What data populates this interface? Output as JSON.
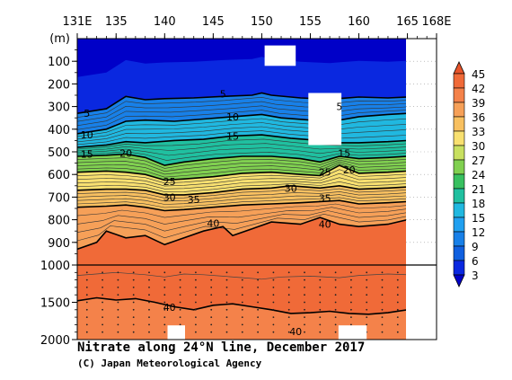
{
  "chart_data": {
    "type": "heatmap",
    "title": "Nitrate along 24°N line, December 2017",
    "credit": "(C) Japan Meteorological Agency",
    "x_axis": {
      "range": [
        131,
        168
      ],
      "ticks": [
        "131E",
        "135",
        "140",
        "145",
        "150",
        "155",
        "160",
        "165",
        "168E"
      ]
    },
    "y_axis": {
      "unit_label": "(m)",
      "upper_panel": {
        "range": [
          0,
          1000
        ],
        "ticks": [
          "100",
          "200",
          "300",
          "400",
          "500",
          "600",
          "700",
          "800",
          "900",
          "1000"
        ]
      },
      "lower_panel": {
        "range": [
          1000,
          2000
        ],
        "ticks": [
          "1500",
          "2000"
        ]
      }
    },
    "colorbar": {
      "levels": [
        "45",
        "42",
        "39",
        "36",
        "33",
        "30",
        "27",
        "24",
        "21",
        "18",
        "15",
        "12",
        "9",
        "6",
        "3"
      ],
      "colors": [
        "#e8542a",
        "#f06a38",
        "#f4824a",
        "#f6a058",
        "#f8c060",
        "#f8e070",
        "#c8e060",
        "#80d050",
        "#38c060",
        "#20c0a0",
        "#20b8e0",
        "#20a0f0",
        "#1880e8",
        "#1060e0",
        "#0a28e0",
        "#0000c8"
      ]
    },
    "contours": [
      {
        "value": 5,
        "profile": [
          [
            131,
            330
          ],
          [
            134,
            310
          ],
          [
            136,
            255
          ],
          [
            138,
            270
          ],
          [
            140,
            265
          ],
          [
            143,
            262
          ],
          [
            146,
            255
          ],
          [
            149,
            250
          ],
          [
            150,
            240
          ],
          [
            151,
            250
          ],
          [
            154,
            262
          ],
          [
            157,
            268
          ],
          [
            160,
            258
          ],
          [
            163,
            262
          ],
          [
            165,
            258
          ]
        ]
      },
      {
        "value": 10,
        "profile": [
          [
            131,
            420
          ],
          [
            134,
            400
          ],
          [
            136,
            365
          ],
          [
            138,
            360
          ],
          [
            141,
            365
          ],
          [
            144,
            355
          ],
          [
            147,
            345
          ],
          [
            150,
            335
          ],
          [
            152,
            350
          ],
          [
            155,
            360
          ],
          [
            158,
            360
          ],
          [
            160,
            345
          ],
          [
            163,
            335
          ],
          [
            165,
            330
          ]
        ]
      },
      {
        "value": 15,
        "profile": [
          [
            131,
            480
          ],
          [
            134,
            470
          ],
          [
            136,
            455
          ],
          [
            138,
            460
          ],
          [
            141,
            450
          ],
          [
            144,
            445
          ],
          [
            147,
            430
          ],
          [
            150,
            425
          ],
          [
            153,
            440
          ],
          [
            156,
            450
          ],
          [
            158,
            460
          ],
          [
            160,
            460
          ],
          [
            163,
            455
          ],
          [
            165,
            450
          ]
        ]
      },
      {
        "value": 20,
        "profile": [
          [
            131,
            520
          ],
          [
            134,
            515
          ],
          [
            136,
            510
          ],
          [
            138,
            525
          ],
          [
            140,
            560
          ],
          [
            142,
            545
          ],
          [
            145,
            530
          ],
          [
            148,
            520
          ],
          [
            151,
            520
          ],
          [
            154,
            530
          ],
          [
            156,
            545
          ],
          [
            158,
            520
          ],
          [
            160,
            530
          ],
          [
            163,
            525
          ],
          [
            165,
            520
          ]
        ]
      },
      {
        "value": 25,
        "profile": [
          [
            131,
            590
          ],
          [
            134,
            585
          ],
          [
            136,
            590
          ],
          [
            138,
            600
          ],
          [
            140,
            625
          ],
          [
            142,
            620
          ],
          [
            145,
            610
          ],
          [
            148,
            595
          ],
          [
            151,
            590
          ],
          [
            154,
            600
          ],
          [
            156,
            605
          ],
          [
            158,
            560
          ],
          [
            160,
            595
          ],
          [
            163,
            590
          ],
          [
            165,
            585
          ]
        ]
      },
      {
        "value": 30,
        "profile": [
          [
            131,
            670
          ],
          [
            134,
            665
          ],
          [
            136,
            665
          ],
          [
            138,
            670
          ],
          [
            140,
            690
          ],
          [
            142,
            690
          ],
          [
            145,
            680
          ],
          [
            148,
            665
          ],
          [
            151,
            660
          ],
          [
            153,
            650
          ],
          [
            156,
            660
          ],
          [
            158,
            650
          ],
          [
            160,
            665
          ],
          [
            163,
            660
          ],
          [
            165,
            655
          ]
        ]
      },
      {
        "value": 35,
        "profile": [
          [
            131,
            745
          ],
          [
            134,
            740
          ],
          [
            136,
            735
          ],
          [
            138,
            745
          ],
          [
            140,
            760
          ],
          [
            142,
            755
          ],
          [
            145,
            745
          ],
          [
            148,
            735
          ],
          [
            151,
            730
          ],
          [
            154,
            725
          ],
          [
            156,
            720
          ],
          [
            158,
            715
          ],
          [
            160,
            730
          ],
          [
            163,
            725
          ],
          [
            165,
            720
          ]
        ]
      },
      {
        "value": 40,
        "profile": [
          [
            131,
            930
          ],
          [
            133,
            900
          ],
          [
            134,
            850
          ],
          [
            136,
            880
          ],
          [
            138,
            870
          ],
          [
            140,
            910
          ],
          [
            142,
            880
          ],
          [
            144,
            850
          ],
          [
            146,
            830
          ],
          [
            147,
            870
          ],
          [
            149,
            840
          ],
          [
            151,
            810
          ],
          [
            154,
            820
          ],
          [
            156,
            790
          ],
          [
            158,
            820
          ],
          [
            160,
            830
          ],
          [
            163,
            820
          ],
          [
            165,
            800
          ]
        ]
      }
    ],
    "contour_labels": [
      {
        "text": "5",
        "x": 146,
        "y": 245
      },
      {
        "text": "5",
        "x": 132,
        "y": 330
      },
      {
        "text": "5",
        "x": 158,
        "y": 300
      },
      {
        "text": "10",
        "x": 132,
        "y": 425
      },
      {
        "text": "10",
        "x": 147,
        "y": 345
      },
      {
        "text": "15",
        "x": 132,
        "y": 510
      },
      {
        "text": "15",
        "x": 147,
        "y": 430
      },
      {
        "text": "15",
        "x": 158.5,
        "y": 505
      },
      {
        "text": "20",
        "x": 136,
        "y": 505
      },
      {
        "text": "20",
        "x": 159,
        "y": 580
      },
      {
        "text": "25",
        "x": 140.5,
        "y": 630
      },
      {
        "text": "25",
        "x": 156.5,
        "y": 590
      },
      {
        "text": "30",
        "x": 140.5,
        "y": 700
      },
      {
        "text": "30",
        "x": 153,
        "y": 660
      },
      {
        "text": "35",
        "x": 143,
        "y": 710
      },
      {
        "text": "35",
        "x": 156.5,
        "y": 705
      },
      {
        "text": "40",
        "x": 145,
        "y": 815
      },
      {
        "text": "40",
        "x": 156.5,
        "y": 820
      },
      {
        "text": "40",
        "x": 140.5,
        "y": 1565
      },
      {
        "text": "40",
        "x": 153.5,
        "y": 1890
      }
    ],
    "deep_40_line": [
      [
        131,
        1480
      ],
      [
        133,
        1440
      ],
      [
        135,
        1470
      ],
      [
        137,
        1450
      ],
      [
        139,
        1500
      ],
      [
        141,
        1560
      ],
      [
        143,
        1600
      ],
      [
        145,
        1540
      ],
      [
        147,
        1520
      ],
      [
        149,
        1560
      ],
      [
        151,
        1600
      ],
      [
        153,
        1650
      ],
      [
        155,
        1640
      ],
      [
        157,
        1620
      ],
      [
        159,
        1650
      ],
      [
        161,
        1660
      ],
      [
        163,
        1640
      ],
      [
        165,
        1600
      ]
    ],
    "deep_42_line": [
      [
        131,
        1140
      ],
      [
        135,
        1100
      ],
      [
        138,
        1130
      ],
      [
        140,
        1160
      ],
      [
        142,
        1120
      ],
      [
        144,
        1130
      ],
      [
        146,
        1150
      ],
      [
        148,
        1170
      ],
      [
        150,
        1190
      ],
      [
        152,
        1160
      ],
      [
        155,
        1150
      ],
      [
        158,
        1170
      ],
      [
        160,
        1140
      ],
      [
        163,
        1120
      ],
      [
        165,
        1130
      ]
    ],
    "missing_areas": [
      {
        "x": [
          150.3,
          153.5
        ],
        "y": [
          30,
          120
        ]
      },
      {
        "x": [
          154.8,
          158.2
        ],
        "y": [
          240,
          470
        ]
      },
      {
        "x": [
          140.3,
          142.1
        ],
        "y": [
          1810,
          2000
        ]
      },
      {
        "x": [
          157.9,
          160.8
        ],
        "y": [
          1810,
          2000
        ]
      },
      {
        "x": [
          165,
          168
        ],
        "y": [
          0,
          2000
        ]
      }
    ]
  }
}
